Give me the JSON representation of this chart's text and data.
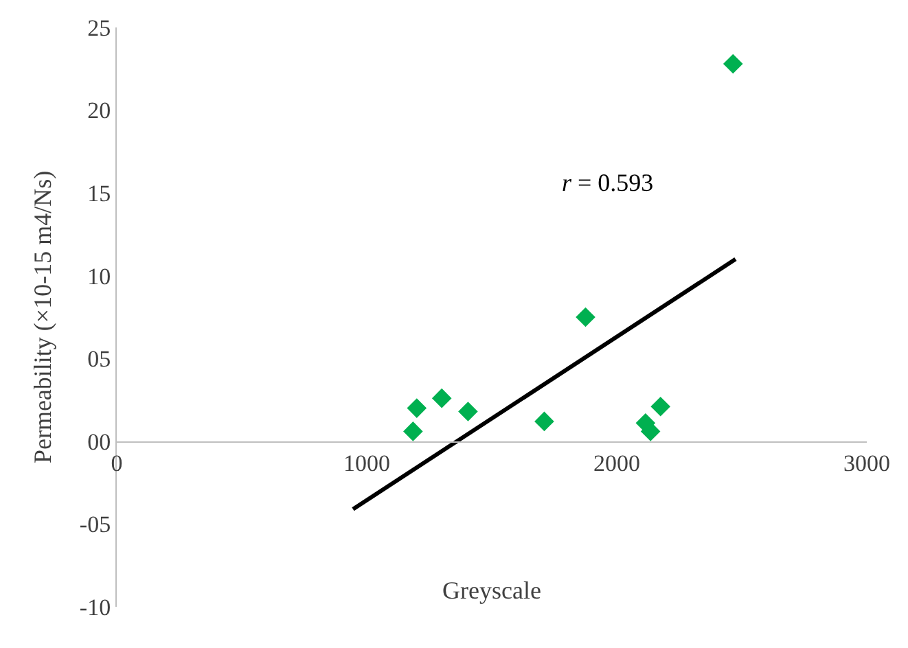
{
  "chart_data": {
    "type": "scatter",
    "xlabel": "Greyscale",
    "ylabel": "Permeability (×10-15 m4/Ns)",
    "series": [
      {
        "color": "#00b050",
        "marker": "diamond",
        "x": [
          1185,
          1200,
          1300,
          1405,
          1710,
          1875,
          2115,
          2135,
          2175,
          2465
        ],
        "values": [
          0.6,
          2.0,
          2.6,
          1.8,
          1.2,
          7.5,
          1.1,
          0.6,
          2.1,
          22.8
        ]
      },
      {
        "type": "line",
        "color": "#000000",
        "x": [
          945,
          2475
        ],
        "values": [
          -4.1,
          11.0
        ]
      }
    ],
    "annotations": [
      "r = 0.593"
    ],
    "xlim": [
      0,
      3000
    ],
    "xticks": [
      0,
      1000,
      2000,
      3000
    ],
    "ylim": [
      -10,
      25
    ],
    "yticks": [
      {
        "value": -10,
        "label": "-10"
      },
      {
        "value": -5,
        "label": "-05"
      },
      {
        "value": 0,
        "label": "00"
      },
      {
        "value": 5,
        "label": "05"
      },
      {
        "value": 10,
        "label": "10"
      },
      {
        "value": 15,
        "label": "15"
      },
      {
        "value": 20,
        "label": "20"
      },
      {
        "value": 25,
        "label": "25"
      }
    ]
  }
}
